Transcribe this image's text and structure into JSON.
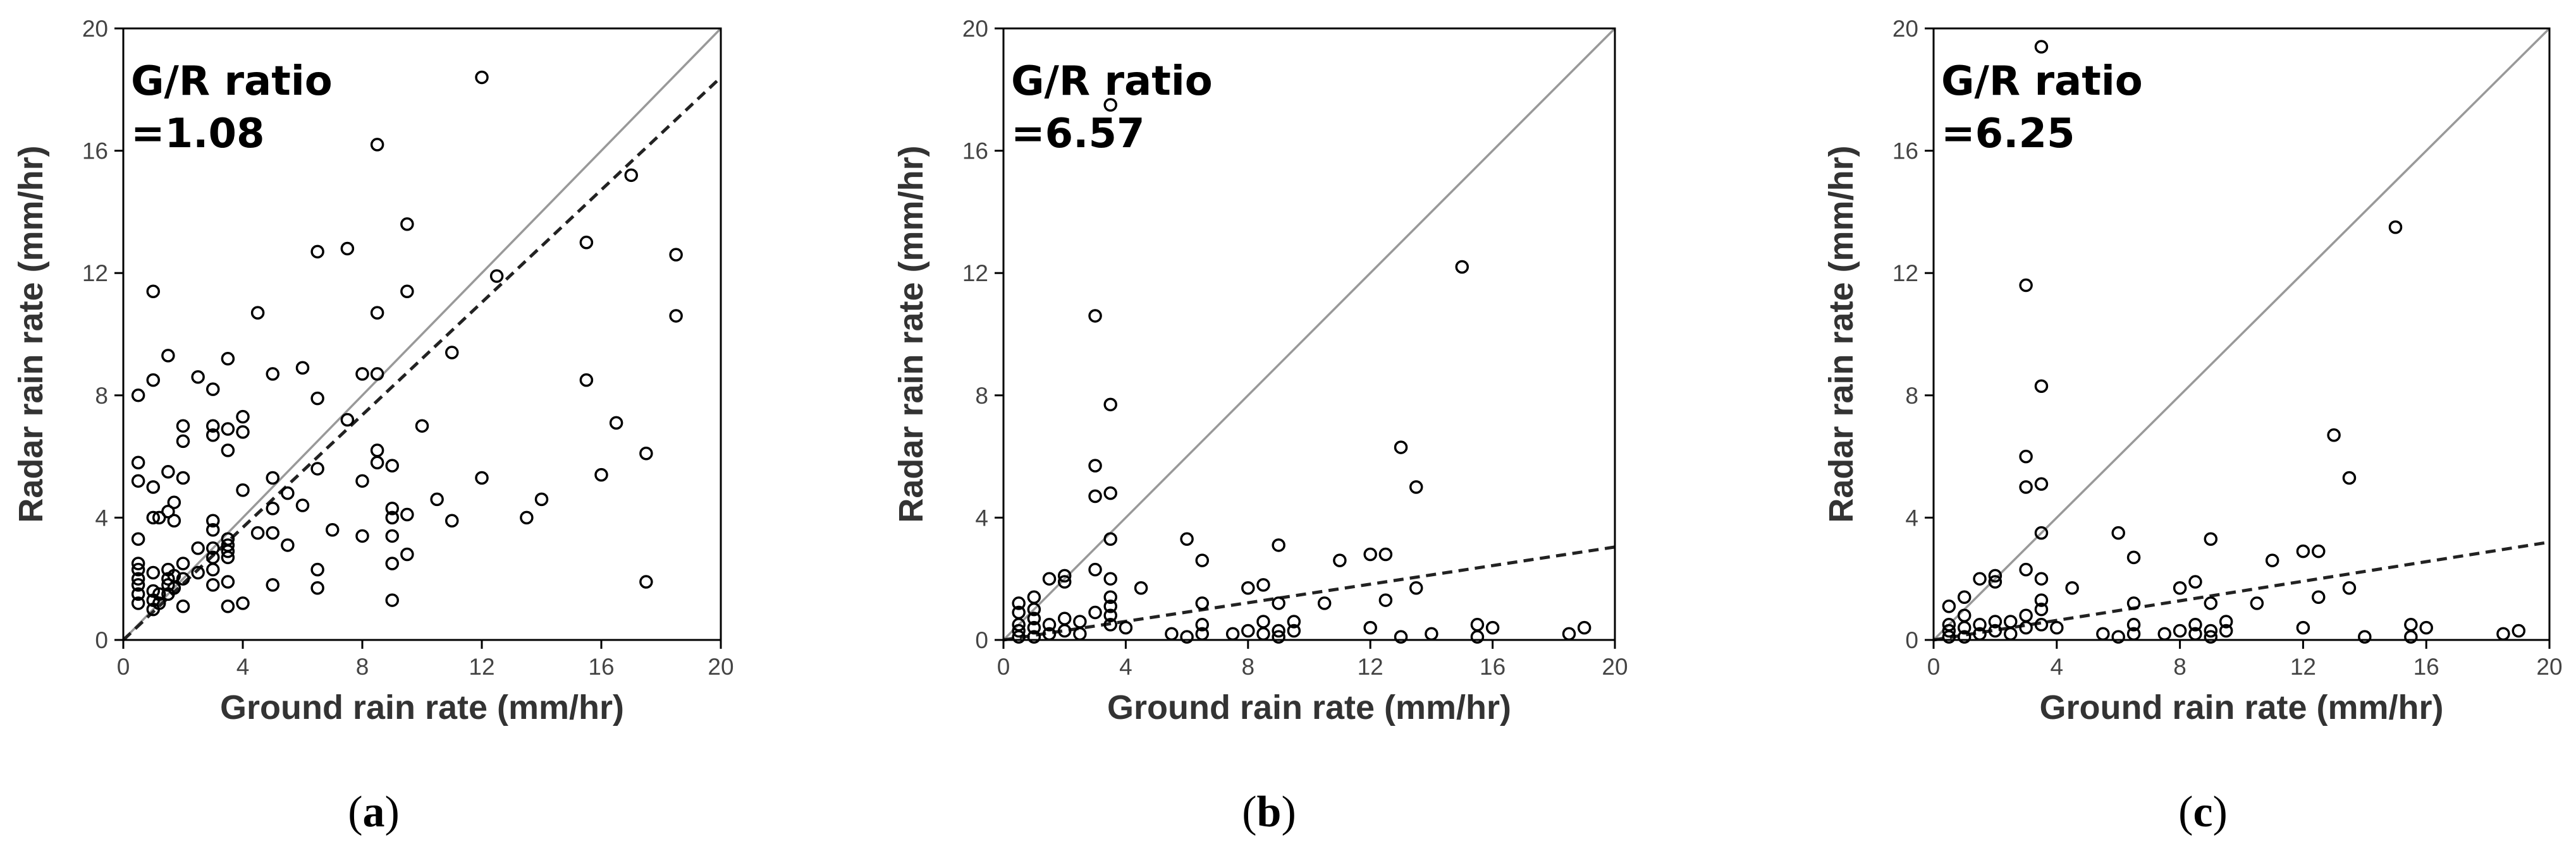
{
  "figure": {
    "marker_color": "#000000",
    "frame_color": "#000000",
    "one_to_one_color": "#999999",
    "fit_color": "#222222"
  },
  "chart_data": [
    {
      "panel": "a",
      "label_open": "(",
      "label_letter": "a",
      "label_close": ")",
      "type": "scatter",
      "xlabel": "Ground rain rate (mm/hr)",
      "ylabel": "Radar rain rate (mm/hr)",
      "xlim": [
        0,
        20
      ],
      "ylim": [
        0,
        20
      ],
      "xticks": [
        0,
        4,
        8,
        12,
        16,
        20
      ],
      "yticks": [
        0,
        4,
        8,
        12,
        16,
        20
      ],
      "annotation_title": "G/R ratio",
      "annotation_value": "=1.08",
      "one_to_one": true,
      "fit_slope": 0.92,
      "points": [
        [
          0.5,
          1.2
        ],
        [
          0.5,
          1.5
        ],
        [
          0.5,
          1.8
        ],
        [
          0.5,
          2.0
        ],
        [
          0.5,
          2.3
        ],
        [
          0.5,
          2.5
        ],
        [
          0.5,
          3.3
        ],
        [
          0.5,
          5.2
        ],
        [
          0.5,
          5.8
        ],
        [
          0.5,
          8.0
        ],
        [
          1.0,
          1.0
        ],
        [
          1.0,
          1.3
        ],
        [
          1.0,
          1.6
        ],
        [
          1.0,
          2.2
        ],
        [
          1.0,
          4.0
        ],
        [
          1.0,
          5.0
        ],
        [
          1.0,
          8.5
        ],
        [
          1.0,
          11.4
        ],
        [
          1.2,
          1.2
        ],
        [
          1.2,
          1.5
        ],
        [
          1.2,
          4.0
        ],
        [
          1.5,
          1.5
        ],
        [
          1.5,
          1.8
        ],
        [
          1.5,
          2.0
        ],
        [
          1.5,
          2.3
        ],
        [
          1.5,
          4.2
        ],
        [
          1.5,
          5.5
        ],
        [
          1.5,
          9.3
        ],
        [
          1.7,
          1.7
        ],
        [
          1.7,
          2.1
        ],
        [
          1.7,
          3.9
        ],
        [
          1.7,
          4.5
        ],
        [
          2.0,
          1.1
        ],
        [
          2.0,
          2.0
        ],
        [
          2.0,
          2.5
        ],
        [
          2.0,
          5.3
        ],
        [
          2.0,
          6.5
        ],
        [
          2.0,
          7.0
        ],
        [
          2.5,
          2.2
        ],
        [
          2.5,
          3.0
        ],
        [
          2.5,
          8.6
        ],
        [
          3.0,
          1.8
        ],
        [
          3.0,
          2.3
        ],
        [
          3.0,
          2.7
        ],
        [
          3.0,
          3.0
        ],
        [
          3.0,
          3.6
        ],
        [
          3.0,
          3.9
        ],
        [
          3.0,
          6.7
        ],
        [
          3.0,
          7.0
        ],
        [
          3.0,
          8.2
        ],
        [
          3.5,
          1.1
        ],
        [
          3.5,
          1.9
        ],
        [
          3.5,
          2.7
        ],
        [
          3.5,
          2.9
        ],
        [
          3.5,
          3.1
        ],
        [
          3.5,
          3.3
        ],
        [
          3.5,
          6.2
        ],
        [
          3.5,
          6.9
        ],
        [
          3.5,
          9.2
        ],
        [
          4.0,
          1.2
        ],
        [
          4.0,
          4.9
        ],
        [
          4.0,
          6.8
        ],
        [
          4.0,
          7.3
        ],
        [
          4.5,
          3.5
        ],
        [
          4.5,
          10.7
        ],
        [
          5.0,
          1.8
        ],
        [
          5.0,
          3.5
        ],
        [
          5.0,
          4.3
        ],
        [
          5.0,
          5.3
        ],
        [
          5.0,
          8.7
        ],
        [
          5.5,
          3.1
        ],
        [
          5.5,
          4.8
        ],
        [
          6.0,
          4.4
        ],
        [
          6.0,
          8.9
        ],
        [
          6.5,
          1.7
        ],
        [
          6.5,
          2.3
        ],
        [
          6.5,
          5.6
        ],
        [
          6.5,
          7.9
        ],
        [
          6.5,
          12.7
        ],
        [
          7.0,
          3.6
        ],
        [
          7.5,
          7.2
        ],
        [
          7.5,
          12.8
        ],
        [
          8.0,
          3.4
        ],
        [
          8.0,
          5.2
        ],
        [
          8.0,
          8.7
        ],
        [
          8.5,
          5.8
        ],
        [
          8.5,
          6.2
        ],
        [
          8.5,
          8.7
        ],
        [
          8.5,
          10.7
        ],
        [
          8.5,
          16.2
        ],
        [
          9.0,
          1.3
        ],
        [
          9.0,
          2.5
        ],
        [
          9.0,
          3.4
        ],
        [
          9.0,
          4.0
        ],
        [
          9.0,
          4.3
        ],
        [
          9.0,
          5.7
        ],
        [
          9.5,
          2.8
        ],
        [
          9.5,
          4.1
        ],
        [
          9.5,
          11.4
        ],
        [
          9.5,
          13.6
        ],
        [
          10.0,
          7.0
        ],
        [
          10.5,
          4.6
        ],
        [
          11.0,
          3.9
        ],
        [
          11.0,
          9.4
        ],
        [
          12.0,
          5.3
        ],
        [
          12.0,
          18.4
        ],
        [
          12.5,
          11.9
        ],
        [
          13.5,
          4.0
        ],
        [
          14.0,
          4.6
        ],
        [
          15.5,
          8.5
        ],
        [
          15.5,
          13.0
        ],
        [
          16.0,
          5.4
        ],
        [
          16.5,
          7.1
        ],
        [
          17.0,
          15.2
        ],
        [
          17.5,
          1.9
        ],
        [
          17.5,
          6.1
        ],
        [
          18.5,
          10.6
        ],
        [
          18.5,
          12.6
        ]
      ]
    },
    {
      "panel": "b",
      "label_open": "(",
      "label_letter": "b",
      "label_close": ")",
      "type": "scatter",
      "xlabel": "Ground rain rate (mm/hr)",
      "ylabel": "Radar rain rate (mm/hr)",
      "xlim": [
        0,
        20
      ],
      "ylim": [
        0,
        20
      ],
      "xticks": [
        0,
        4,
        8,
        12,
        16,
        20
      ],
      "yticks": [
        0,
        4,
        8,
        12,
        16,
        20
      ],
      "annotation_title": "G/R ratio",
      "annotation_value": "=6.57",
      "one_to_one": true,
      "fit_slope": 0.152,
      "points": [
        [
          0.5,
          0.1
        ],
        [
          0.5,
          0.3
        ],
        [
          0.5,
          0.5
        ],
        [
          0.5,
          0.9
        ],
        [
          0.5,
          1.2
        ],
        [
          1.0,
          0.1
        ],
        [
          1.0,
          0.4
        ],
        [
          1.0,
          0.7
        ],
        [
          1.0,
          1.0
        ],
        [
          1.0,
          1.4
        ],
        [
          1.5,
          0.2
        ],
        [
          1.5,
          0.5
        ],
        [
          1.5,
          2.0
        ],
        [
          2.0,
          0.3
        ],
        [
          2.0,
          0.7
        ],
        [
          2.0,
          1.9
        ],
        [
          2.0,
          2.1
        ],
        [
          2.5,
          0.2
        ],
        [
          2.5,
          0.6
        ],
        [
          3.0,
          0.9
        ],
        [
          3.0,
          2.3
        ],
        [
          3.0,
          4.7
        ],
        [
          3.0,
          5.7
        ],
        [
          3.0,
          10.6
        ],
        [
          3.5,
          0.5
        ],
        [
          3.5,
          0.8
        ],
        [
          3.5,
          1.1
        ],
        [
          3.5,
          1.4
        ],
        [
          3.5,
          2.0
        ],
        [
          3.5,
          3.3
        ],
        [
          3.5,
          4.8
        ],
        [
          3.5,
          7.7
        ],
        [
          3.5,
          17.5
        ],
        [
          4.0,
          0.4
        ],
        [
          4.5,
          1.7
        ],
        [
          5.5,
          0.2
        ],
        [
          6.0,
          0.1
        ],
        [
          6.0,
          3.3
        ],
        [
          6.5,
          0.2
        ],
        [
          6.5,
          0.5
        ],
        [
          6.5,
          1.2
        ],
        [
          6.5,
          2.6
        ],
        [
          7.5,
          0.2
        ],
        [
          8.0,
          0.3
        ],
        [
          8.0,
          1.7
        ],
        [
          8.5,
          0.2
        ],
        [
          8.5,
          0.6
        ],
        [
          8.5,
          1.8
        ],
        [
          9.0,
          0.1
        ],
        [
          9.0,
          0.3
        ],
        [
          9.0,
          1.2
        ],
        [
          9.0,
          3.1
        ],
        [
          9.5,
          0.3
        ],
        [
          9.5,
          0.6
        ],
        [
          10.5,
          1.2
        ],
        [
          11.0,
          2.6
        ],
        [
          12.0,
          0.4
        ],
        [
          12.0,
          2.8
        ],
        [
          12.5,
          1.3
        ],
        [
          12.5,
          2.8
        ],
        [
          13.0,
          0.1
        ],
        [
          13.0,
          6.3
        ],
        [
          13.5,
          1.7
        ],
        [
          13.5,
          5.0
        ],
        [
          14.0,
          0.2
        ],
        [
          15.0,
          12.2
        ],
        [
          15.5,
          0.1
        ],
        [
          15.5,
          0.5
        ],
        [
          16.0,
          0.4
        ],
        [
          18.5,
          0.2
        ],
        [
          19.0,
          0.4
        ]
      ]
    },
    {
      "panel": "c",
      "label_open": "(",
      "label_letter": "c",
      "label_close": ")",
      "type": "scatter",
      "xlabel": "Ground rain rate (mm/hr)",
      "ylabel": "Radar rain rate (mm/hr)",
      "xlim": [
        0,
        20
      ],
      "ylim": [
        0,
        20
      ],
      "xticks": [
        0,
        4,
        8,
        12,
        16,
        20
      ],
      "yticks": [
        0,
        4,
        8,
        12,
        16,
        20
      ],
      "annotation_title": "G/R ratio",
      "annotation_value": "=6.25",
      "one_to_one": true,
      "fit_slope": 0.16,
      "points": [
        [
          0.5,
          0.1
        ],
        [
          0.5,
          0.3
        ],
        [
          0.5,
          0.5
        ],
        [
          0.5,
          1.1
        ],
        [
          1.0,
          0.1
        ],
        [
          1.0,
          0.4
        ],
        [
          1.0,
          0.8
        ],
        [
          1.0,
          1.4
        ],
        [
          1.5,
          0.2
        ],
        [
          1.5,
          0.5
        ],
        [
          1.5,
          2.0
        ],
        [
          2.0,
          0.3
        ],
        [
          2.0,
          0.6
        ],
        [
          2.0,
          1.9
        ],
        [
          2.0,
          2.1
        ],
        [
          2.5,
          0.2
        ],
        [
          2.5,
          0.6
        ],
        [
          3.0,
          0.4
        ],
        [
          3.0,
          0.8
        ],
        [
          3.0,
          2.3
        ],
        [
          3.0,
          5.0
        ],
        [
          3.0,
          6.0
        ],
        [
          3.0,
          11.6
        ],
        [
          3.5,
          0.5
        ],
        [
          3.5,
          1.0
        ],
        [
          3.5,
          1.3
        ],
        [
          3.5,
          2.0
        ],
        [
          3.5,
          3.5
        ],
        [
          3.5,
          5.1
        ],
        [
          3.5,
          8.3
        ],
        [
          3.5,
          19.4
        ],
        [
          4.0,
          0.4
        ],
        [
          4.5,
          1.7
        ],
        [
          5.5,
          0.2
        ],
        [
          6.0,
          0.1
        ],
        [
          6.0,
          3.5
        ],
        [
          6.5,
          0.2
        ],
        [
          6.5,
          0.5
        ],
        [
          6.5,
          1.2
        ],
        [
          6.5,
          2.7
        ],
        [
          7.5,
          0.2
        ],
        [
          8.0,
          0.3
        ],
        [
          8.0,
          1.7
        ],
        [
          8.5,
          0.2
        ],
        [
          8.5,
          0.5
        ],
        [
          8.5,
          1.9
        ],
        [
          9.0,
          0.1
        ],
        [
          9.0,
          0.3
        ],
        [
          9.0,
          1.2
        ],
        [
          9.0,
          3.3
        ],
        [
          9.5,
          0.3
        ],
        [
          9.5,
          0.6
        ],
        [
          10.5,
          1.2
        ],
        [
          11.0,
          2.6
        ],
        [
          12.0,
          0.4
        ],
        [
          12.0,
          2.9
        ],
        [
          12.5,
          1.4
        ],
        [
          12.5,
          2.9
        ],
        [
          13.0,
          6.7
        ],
        [
          13.5,
          1.7
        ],
        [
          13.5,
          5.3
        ],
        [
          14.0,
          0.1
        ],
        [
          15.0,
          13.5
        ],
        [
          15.5,
          0.1
        ],
        [
          15.5,
          0.5
        ],
        [
          16.0,
          0.4
        ],
        [
          18.5,
          0.2
        ],
        [
          19.0,
          0.3
        ]
      ]
    }
  ]
}
